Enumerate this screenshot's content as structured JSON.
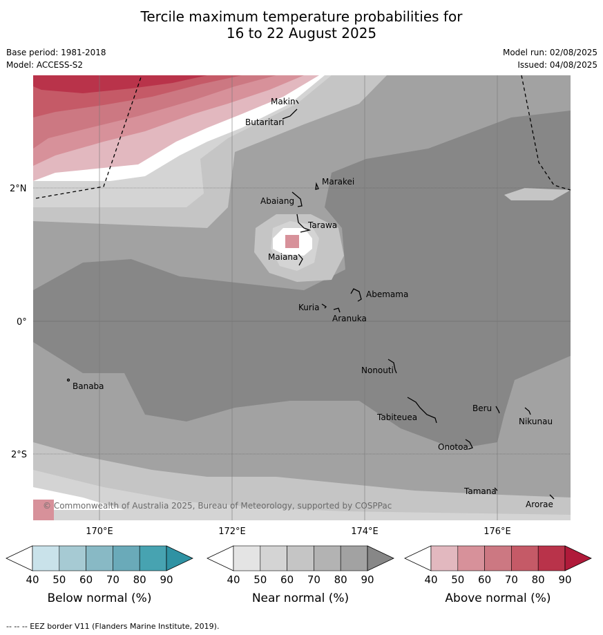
{
  "header": {
    "title_line1": "Tercile maximum temperature probabilities for",
    "title_line2": "16 to 22 August 2025",
    "base_period": "Base period: 1981-2018",
    "model": "Model: ACCESS-S2",
    "model_run": "Model run: 02/08/2025",
    "issued": "Issued: 04/08/2025"
  },
  "map": {
    "lat_labels": [
      "2°N",
      "0°",
      "2°S"
    ],
    "lon_labels": [
      "170°E",
      "172°E",
      "174°E",
      "176°E"
    ],
    "places": [
      "Makin",
      "Butaritari",
      "Marakei",
      "Abaiang",
      "Tarawa",
      "Maiana",
      "Abemama",
      "Kuria",
      "Aranuka",
      "Banaba",
      "Nonouti",
      "Beru",
      "Tabiteuea",
      "Nikunau",
      "Onotoa",
      "Tamana",
      "Arorae"
    ],
    "copyright": "© Commonwealth of Australia 2025, Bureau of Meteorology, supported by COSPPac"
  },
  "colorbars": [
    {
      "title": "Below normal (%)",
      "ticks": [
        "40",
        "50",
        "60",
        "70",
        "80",
        "90"
      ],
      "colors": [
        "#ffffff",
        "#c9e2ea",
        "#a6cad3",
        "#88b9c5",
        "#6aaab9",
        "#47a3b1",
        "#2f92a3"
      ]
    },
    {
      "title": "Near normal (%)",
      "ticks": [
        "40",
        "50",
        "60",
        "70",
        "80",
        "90"
      ],
      "colors": [
        "#ffffff",
        "#e4e4e4",
        "#d4d4d4",
        "#c5c5c5",
        "#b3b3b3",
        "#a2a2a2",
        "#878787"
      ]
    },
    {
      "title": "Above normal (%)",
      "ticks": [
        "40",
        "50",
        "60",
        "70",
        "80",
        "90"
      ],
      "colors": [
        "#ffffff",
        "#e2b8bf",
        "#d7919a",
        "#cc7882",
        "#c55a67",
        "#b9334a",
        "#b01a3a"
      ]
    }
  ],
  "footnote": "--  --  -- EEZ border V11 (Flanders Marine Institute, 2019)."
}
